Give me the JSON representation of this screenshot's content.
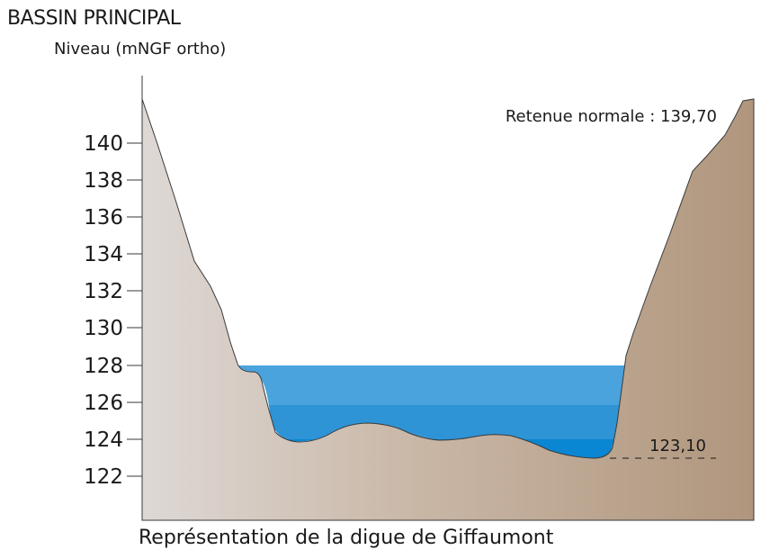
{
  "header": {
    "title": "BASSIN PRINCIPAL",
    "subtitle": "Niveau (mNGF ortho)"
  },
  "caption": "Représentation de la digue de Giffaumont",
  "annotations": {
    "retenue_label": "Retenue normale : 139,70",
    "min_level_label": "123,10"
  },
  "axis": {
    "ticks": [
      "140",
      "138",
      "136",
      "134",
      "132",
      "130",
      "128",
      "126",
      "124",
      "122"
    ]
  },
  "colors": {
    "water_light": "#4aa3dc",
    "water_mid": "#2e94d6",
    "water_dark": "#0a86d2",
    "terrain_left": "#ddd6d2",
    "terrain_right": "#b39a80"
  }
}
